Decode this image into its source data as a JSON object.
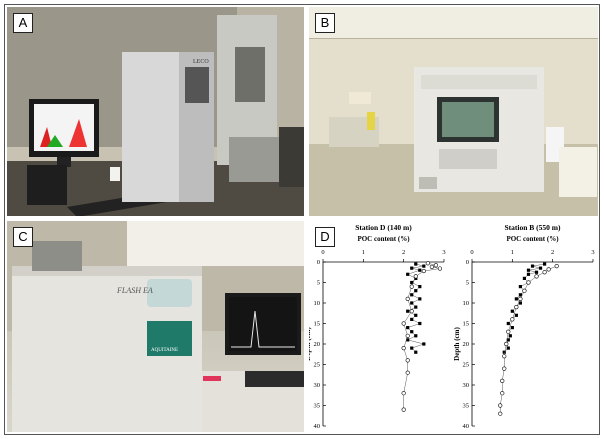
{
  "panels": {
    "a": {
      "label": "A"
    },
    "b": {
      "label": "B"
    },
    "c": {
      "label": "C"
    },
    "d": {
      "label": "D"
    }
  },
  "instrument_a": {
    "brand_text": "LECO"
  },
  "instrument_c": {
    "brand_text": "FLASH EA",
    "badge_text": "AQUITAINE"
  },
  "chart_data": [
    {
      "type": "scatter",
      "title": "Station D (140 m)",
      "xlabel": "POC content (%)",
      "ylabel": "Depth (cm)",
      "xlim": [
        0,
        3
      ],
      "ylim": [
        40,
        0
      ],
      "x_ticks": [
        "0",
        "1",
        "2",
        "3"
      ],
      "y_ticks": [
        "0",
        "5",
        "10",
        "15",
        "20",
        "25",
        "30",
        "35",
        "40"
      ],
      "series": [
        {
          "marker": "filled-square",
          "points": [
            [
              2.3,
              0.5
            ],
            [
              2.5,
              1
            ],
            [
              2.2,
              1.5
            ],
            [
              2.4,
              2
            ],
            [
              2.1,
              3
            ],
            [
              2.3,
              4
            ],
            [
              2.2,
              5
            ],
            [
              2.4,
              6
            ],
            [
              2.3,
              7
            ],
            [
              2.2,
              8
            ],
            [
              2.4,
              9
            ],
            [
              2.2,
              10
            ],
            [
              2.3,
              11
            ],
            [
              2.1,
              12
            ],
            [
              2.3,
              13
            ],
            [
              2.2,
              14
            ],
            [
              2.4,
              15
            ],
            [
              2.1,
              16
            ],
            [
              2.2,
              17
            ],
            [
              2.3,
              18
            ],
            [
              2.1,
              19
            ],
            [
              2.5,
              20
            ],
            [
              2.2,
              21
            ],
            [
              2.3,
              22
            ]
          ]
        },
        {
          "marker": "open-circle",
          "points": [
            [
              2.6,
              0.3
            ],
            [
              2.8,
              0.8
            ],
            [
              2.7,
              1.2
            ],
            [
              2.9,
              1.6
            ],
            [
              2.5,
              2.2
            ],
            [
              2.3,
              3.5
            ],
            [
              2.2,
              6
            ],
            [
              2.1,
              9
            ],
            [
              2.2,
              12
            ],
            [
              2.0,
              15
            ],
            [
              2.1,
              18
            ],
            [
              2.0,
              21
            ],
            [
              2.1,
              24
            ],
            [
              2.1,
              27
            ],
            [
              2.0,
              32
            ],
            [
              2.0,
              36
            ]
          ]
        }
      ]
    },
    {
      "type": "scatter",
      "title": "Station B (550 m)",
      "xlabel": "POC content (%)",
      "ylabel": "Depth (cm)",
      "xlim": [
        0,
        3
      ],
      "ylim": [
        40,
        0
      ],
      "x_ticks": [
        "0",
        "1",
        "2",
        "3"
      ],
      "y_ticks": [
        "0",
        "5",
        "10",
        "15",
        "20",
        "25",
        "30",
        "35",
        "40"
      ],
      "series": [
        {
          "marker": "filled-square",
          "points": [
            [
              1.8,
              0.5
            ],
            [
              1.5,
              1
            ],
            [
              1.7,
              1.5
            ],
            [
              1.4,
              2
            ],
            [
              1.6,
              2.5
            ],
            [
              1.4,
              3
            ],
            [
              1.3,
              4
            ],
            [
              1.4,
              5
            ],
            [
              1.2,
              6
            ],
            [
              1.3,
              7
            ],
            [
              1.2,
              8
            ],
            [
              1.1,
              9
            ],
            [
              1.2,
              10
            ],
            [
              1.1,
              11
            ],
            [
              1.0,
              12
            ],
            [
              1.1,
              13
            ],
            [
              1.0,
              14
            ],
            [
              0.9,
              15
            ],
            [
              1.0,
              16
            ],
            [
              0.9,
              17
            ],
            [
              0.95,
              18
            ],
            [
              0.9,
              19
            ],
            [
              0.85,
              20
            ],
            [
              0.9,
              21
            ],
            [
              0.8,
              22
            ]
          ]
        },
        {
          "marker": "open-circle",
          "points": [
            [
              2.1,
              1.0
            ],
            [
              1.9,
              1.8
            ],
            [
              1.8,
              2.5
            ],
            [
              1.6,
              3.5
            ],
            [
              1.4,
              5
            ],
            [
              1.3,
              7
            ],
            [
              1.2,
              9
            ],
            [
              1.1,
              11
            ],
            [
              1.0,
              14
            ],
            [
              0.9,
              17
            ],
            [
              0.85,
              20
            ],
            [
              0.8,
              23
            ],
            [
              0.8,
              26
            ],
            [
              0.75,
              29
            ],
            [
              0.75,
              32
            ],
            [
              0.7,
              35
            ],
            [
              0.7,
              37
            ]
          ]
        }
      ]
    }
  ]
}
